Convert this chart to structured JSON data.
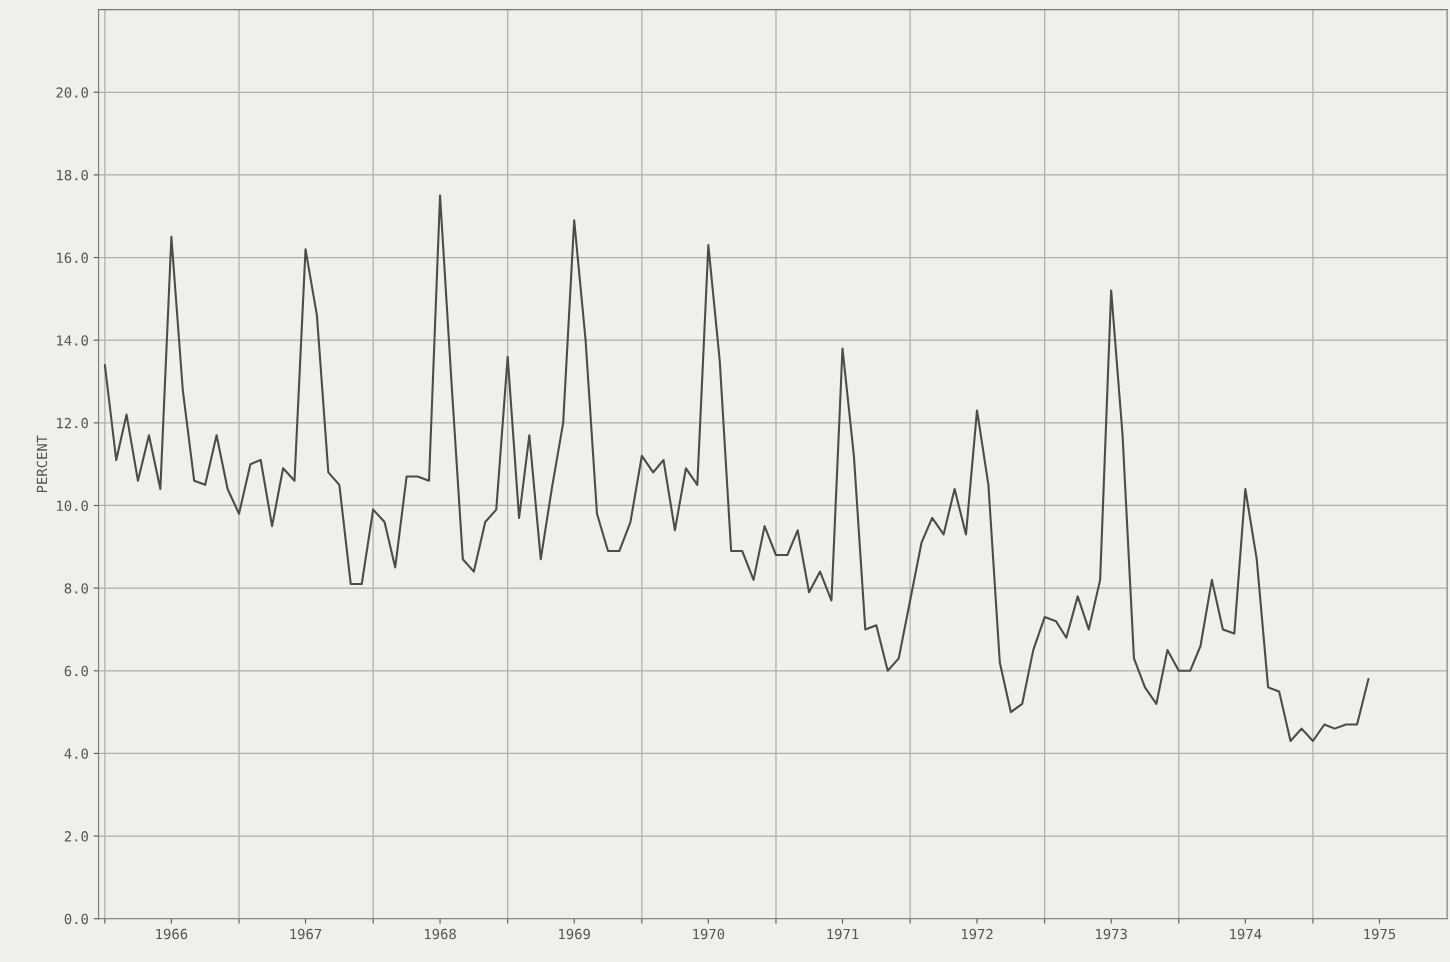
{
  "chart_data": {
    "type": "line",
    "ylabel": "PERCENT",
    "x": [
      "1966-01",
      "1966-02",
      "1966-03",
      "1966-04",
      "1966-05",
      "1966-06",
      "1966-07",
      "1966-08",
      "1966-09",
      "1966-10",
      "1966-11",
      "1966-12",
      "1967-01",
      "1967-02",
      "1967-03",
      "1967-04",
      "1967-05",
      "1967-06",
      "1967-07",
      "1967-08",
      "1967-09",
      "1967-10",
      "1967-11",
      "1967-12",
      "1968-01",
      "1968-02",
      "1968-03",
      "1968-04",
      "1968-05",
      "1968-06",
      "1968-07",
      "1968-08",
      "1968-09",
      "1968-10",
      "1968-11",
      "1968-12",
      "1969-01",
      "1969-02",
      "1969-03",
      "1969-04",
      "1969-05",
      "1969-06",
      "1969-07",
      "1969-08",
      "1969-09",
      "1969-10",
      "1969-11",
      "1969-12",
      "1970-01",
      "1970-02",
      "1970-03",
      "1970-04",
      "1970-05",
      "1970-06",
      "1970-07",
      "1970-08",
      "1970-09",
      "1970-10",
      "1970-11",
      "1970-12",
      "1971-01",
      "1971-02",
      "1971-03",
      "1971-04",
      "1971-05",
      "1971-06",
      "1971-07",
      "1971-08",
      "1971-09",
      "1971-10",
      "1971-11",
      "1971-12",
      "1972-01",
      "1972-02",
      "1972-03",
      "1972-04",
      "1972-05",
      "1972-06",
      "1972-07",
      "1972-08",
      "1972-09",
      "1972-10",
      "1972-11",
      "1972-12",
      "1973-01",
      "1973-02",
      "1973-03",
      "1973-04",
      "1973-05",
      "1973-06",
      "1973-07",
      "1973-08",
      "1973-09",
      "1973-10",
      "1973-11",
      "1973-12",
      "1974-01",
      "1974-02",
      "1974-03",
      "1974-04",
      "1974-05",
      "1974-06",
      "1974-07",
      "1974-08",
      "1974-09",
      "1974-10",
      "1974-11",
      "1974-12",
      "1975-01",
      "1975-02",
      "1975-03",
      "1975-04",
      "1975-05",
      "1975-06"
    ],
    "series": [
      {
        "color": "#4a4d4a",
        "values": [
          13.4,
          11.1,
          12.2,
          10.6,
          11.7,
          10.4,
          16.5,
          12.8,
          10.6,
          10.5,
          11.7,
          10.4,
          9.8,
          11.0,
          11.1,
          9.5,
          10.9,
          10.6,
          16.2,
          14.6,
          10.8,
          10.5,
          8.1,
          8.1,
          9.9,
          9.6,
          8.5,
          10.7,
          10.7,
          10.6,
          17.5,
          13.0,
          8.7,
          8.4,
          9.6,
          9.9,
          13.6,
          9.7,
          11.7,
          8.7,
          10.4,
          12.0,
          16.9,
          14.0,
          9.8,
          8.9,
          8.9,
          9.6,
          11.2,
          10.8,
          11.1,
          9.4,
          10.9,
          10.5,
          16.3,
          13.5,
          8.9,
          8.9,
          8.2,
          9.5,
          8.8,
          8.8,
          9.4,
          7.9,
          8.4,
          7.7,
          13.8,
          11.2,
          7.0,
          7.1,
          6.0,
          6.3,
          7.7,
          9.1,
          9.7,
          9.3,
          10.4,
          9.3,
          12.3,
          10.5,
          6.2,
          5.0,
          5.2,
          6.5,
          7.3,
          7.2,
          6.8,
          7.8,
          7.0,
          8.2,
          15.2,
          11.7,
          6.3,
          5.6,
          5.2,
          6.5,
          6.0,
          6.0,
          6.6,
          8.2,
          7.0,
          6.9,
          10.4,
          8.7,
          5.6,
          5.5,
          4.3,
          4.6,
          4.3,
          4.7,
          4.6,
          4.7,
          4.7,
          5.8
        ]
      }
    ],
    "xlim": [
      "1965-12-15",
      "1976-01-01"
    ],
    "xticks": [
      {
        "value": "1966-01",
        "label": null
      },
      {
        "value": "1966-07",
        "label": "1966"
      },
      {
        "value": "1967-01",
        "label": null
      },
      {
        "value": "1967-07",
        "label": "1967"
      },
      {
        "value": "1968-01",
        "label": null
      },
      {
        "value": "1968-07",
        "label": "1968"
      },
      {
        "value": "1969-01",
        "label": null
      },
      {
        "value": "1969-07",
        "label": "1969"
      },
      {
        "value": "1970-01",
        "label": null
      },
      {
        "value": "1970-07",
        "label": "1970"
      },
      {
        "value": "1971-01",
        "label": null
      },
      {
        "value": "1971-07",
        "label": "1971"
      },
      {
        "value": "1972-01",
        "label": null
      },
      {
        "value": "1972-07",
        "label": "1972"
      },
      {
        "value": "1973-01",
        "label": null
      },
      {
        "value": "1973-07",
        "label": "1973"
      },
      {
        "value": "1974-01",
        "label": null
      },
      {
        "value": "1974-07",
        "label": "1974"
      },
      {
        "value": "1975-01",
        "label": null
      },
      {
        "value": "1975-07",
        "label": "1975"
      }
    ],
    "ylim": [
      0,
      22
    ],
    "yticks": [
      {
        "value": 0,
        "label": "0.0"
      },
      {
        "value": 2,
        "label": "2.0"
      },
      {
        "value": 4,
        "label": "4.0"
      },
      {
        "value": 6,
        "label": "6.0"
      },
      {
        "value": 8,
        "label": "8.0"
      },
      {
        "value": 10,
        "label": "10.0"
      },
      {
        "value": 12,
        "label": "12.0"
      },
      {
        "value": 14,
        "label": "14.0"
      },
      {
        "value": 16,
        "label": "16.0"
      },
      {
        "value": 18,
        "label": "18.0"
      },
      {
        "value": 20,
        "label": "20.0"
      }
    ],
    "grid": true,
    "marker": "none",
    "line_style": "solid"
  }
}
